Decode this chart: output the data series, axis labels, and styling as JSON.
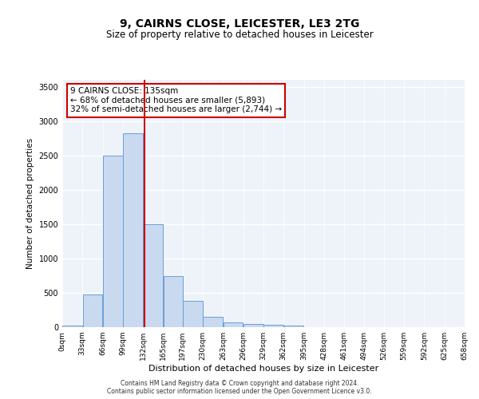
{
  "title": "9, CAIRNS CLOSE, LEICESTER, LE3 2TG",
  "subtitle": "Size of property relative to detached houses in Leicester",
  "xlabel": "Distribution of detached houses by size in Leicester",
  "ylabel": "Number of detached properties",
  "bar_color": "#c9d9f0",
  "bar_edge_color": "#6a9fd8",
  "background_color": "#eef3fa",
  "grid_color": "#ffffff",
  "annotation_box_color": "#cc0000",
  "property_line_color": "#cc0000",
  "property_size": 135,
  "annotation_line1": "9 CAIRNS CLOSE: 135sqm",
  "annotation_line2": "← 68% of detached houses are smaller (5,893)",
  "annotation_line3": "32% of semi-detached houses are larger (2,744) →",
  "footer_line1": "Contains HM Land Registry data © Crown copyright and database right 2024.",
  "footer_line2": "Contains public sector information licensed under the Open Government Licence v3.0.",
  "bin_edges": [
    0,
    33,
    66,
    99,
    132,
    165,
    197,
    230,
    263,
    296,
    329,
    362,
    395,
    428,
    461,
    494,
    526,
    559,
    592,
    625,
    658
  ],
  "bin_labels": [
    "0sqm",
    "33sqm",
    "66sqm",
    "99sqm",
    "132sqm",
    "165sqm",
    "197sqm",
    "230sqm",
    "263sqm",
    "296sqm",
    "329sqm",
    "362sqm",
    "395sqm",
    "428sqm",
    "461sqm",
    "494sqm",
    "526sqm",
    "559sqm",
    "592sqm",
    "625sqm",
    "658sqm"
  ],
  "bar_heights": [
    20,
    480,
    2500,
    2820,
    1500,
    740,
    380,
    155,
    65,
    45,
    40,
    25,
    0,
    0,
    0,
    0,
    0,
    0,
    0,
    0
  ],
  "ylim": [
    0,
    3600
  ],
  "yticks": [
    0,
    500,
    1000,
    1500,
    2000,
    2500,
    3000,
    3500
  ]
}
